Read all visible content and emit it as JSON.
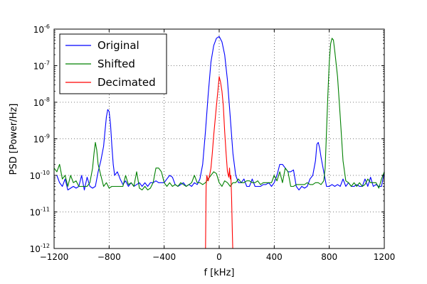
{
  "chart_data": {
    "type": "line",
    "xlabel": "f [kHz]",
    "ylabel": "PSD [Power/Hz]",
    "xlim": [
      -1200,
      1200
    ],
    "ylim_log10": [
      -12,
      -6
    ],
    "y_scale": "log",
    "grid": "dotted",
    "legend_position": "top-left",
    "x_ticks": [
      -1200,
      -800,
      -400,
      0,
      400,
      800,
      1200
    ],
    "x_tick_labels": [
      "−1200",
      "−800",
      "−400",
      "0",
      "400",
      "800",
      "1200"
    ],
    "y_tick_exponents": [
      -12,
      -11,
      -10,
      -9,
      -8,
      -7,
      -6
    ],
    "y_tick_labels": [
      {
        "base": "10",
        "exp": "-12"
      },
      {
        "base": "10",
        "exp": "-11"
      },
      {
        "base": "10",
        "exp": "-10"
      },
      {
        "base": "10",
        "exp": "-9"
      },
      {
        "base": "10",
        "exp": "-8"
      },
      {
        "base": "10",
        "exp": "-7"
      },
      {
        "base": "10",
        "exp": "-6"
      }
    ],
    "series": [
      {
        "name": "Original",
        "color": "#0000ff",
        "x": [
          -1200,
          -1180,
          -1160,
          -1140,
          -1120,
          -1100,
          -1080,
          -1060,
          -1040,
          -1020,
          -1000,
          -980,
          -960,
          -940,
          -920,
          -900,
          -880,
          -860,
          -840,
          -830,
          -820,
          -810,
          -800,
          -790,
          -780,
          -770,
          -760,
          -740,
          -720,
          -700,
          -680,
          -660,
          -640,
          -620,
          -600,
          -580,
          -560,
          -540,
          -520,
          -500,
          -480,
          -460,
          -440,
          -420,
          -400,
          -380,
          -360,
          -340,
          -320,
          -300,
          -280,
          -260,
          -240,
          -220,
          -200,
          -180,
          -160,
          -140,
          -120,
          -100,
          -80,
          -60,
          -40,
          -20,
          0,
          20,
          40,
          60,
          80,
          100,
          120,
          140,
          160,
          180,
          200,
          220,
          240,
          260,
          280,
          300,
          320,
          340,
          360,
          380,
          400,
          420,
          440,
          460,
          480,
          500,
          520,
          540,
          560,
          580,
          600,
          620,
          640,
          660,
          680,
          700,
          710,
          720,
          730,
          740,
          760,
          780,
          800,
          820,
          840,
          860,
          880,
          900,
          920,
          940,
          960,
          980,
          1000,
          1020,
          1040,
          1060,
          1080,
          1100,
          1120,
          1140,
          1160,
          1180,
          1200
        ],
        "log10_y": [
          -10.0,
          -10.0,
          -10.2,
          -10.3,
          -10.1,
          -10.4,
          -10.35,
          -10.3,
          -10.35,
          -10.3,
          -10.0,
          -10.4,
          -10.05,
          -10.3,
          -10.35,
          -10.3,
          -9.9,
          -9.6,
          -9.2,
          -8.8,
          -8.4,
          -8.2,
          -8.25,
          -8.6,
          -9.2,
          -9.7,
          -10.0,
          -9.9,
          -10.1,
          -10.25,
          -10.15,
          -10.3,
          -10.2,
          -10.3,
          -10.25,
          -10.2,
          -10.3,
          -10.2,
          -10.3,
          -10.2,
          -10.2,
          -10.15,
          -10.2,
          -10.2,
          -10.2,
          -10.1,
          -10.0,
          -10.05,
          -10.25,
          -10.3,
          -10.25,
          -10.2,
          -10.3,
          -10.25,
          -10.3,
          -10.2,
          -10.25,
          -10.1,
          -9.7,
          -8.8,
          -7.8,
          -6.9,
          -6.45,
          -6.25,
          -6.2,
          -6.35,
          -6.7,
          -7.4,
          -8.4,
          -9.4,
          -10.0,
          -10.2,
          -10.2,
          -10.1,
          -10.3,
          -10.3,
          -10.1,
          -10.3,
          -10.3,
          -10.3,
          -10.25,
          -10.25,
          -10.2,
          -10.3,
          -10.2,
          -10.0,
          -9.7,
          -9.7,
          -9.8,
          -9.9,
          -9.9,
          -9.85,
          -10.3,
          -10.4,
          -10.3,
          -10.35,
          -10.3,
          -10.1,
          -10.0,
          -9.6,
          -9.15,
          -9.1,
          -9.25,
          -9.5,
          -9.9,
          -10.3,
          -10.3,
          -10.25,
          -10.3,
          -10.25,
          -10.3,
          -10.1,
          -10.3,
          -10.2,
          -10.3,
          -10.3,
          -10.25,
          -10.3,
          -10.3,
          -10.1,
          -10.3,
          -10.05,
          -10.3,
          -10.25,
          -10.3,
          -10.3,
          -9.9
        ]
      },
      {
        "name": "Shifted",
        "color": "#008000",
        "x": [
          -1200,
          -1180,
          -1160,
          -1140,
          -1120,
          -1100,
          -1080,
          -1060,
          -1040,
          -1020,
          -1000,
          -980,
          -960,
          -940,
          -920,
          -910,
          -900,
          -890,
          -880,
          -860,
          -840,
          -820,
          -800,
          -780,
          -760,
          -740,
          -720,
          -700,
          -680,
          -660,
          -640,
          -620,
          -600,
          -580,
          -560,
          -540,
          -520,
          -500,
          -480,
          -460,
          -440,
          -420,
          -400,
          -380,
          -360,
          -340,
          -320,
          -300,
          -280,
          -260,
          -240,
          -220,
          -200,
          -180,
          -160,
          -140,
          -120,
          -100,
          -80,
          -60,
          -40,
          -20,
          0,
          20,
          40,
          60,
          80,
          100,
          120,
          140,
          160,
          180,
          200,
          220,
          240,
          260,
          280,
          300,
          320,
          340,
          360,
          380,
          400,
          420,
          440,
          460,
          480,
          500,
          520,
          540,
          560,
          580,
          600,
          620,
          640,
          660,
          680,
          700,
          720,
          740,
          760,
          770,
          780,
          790,
          800,
          810,
          820,
          830,
          840,
          860,
          880,
          900,
          920,
          940,
          960,
          980,
          1000,
          1020,
          1040,
          1060,
          1080,
          1100,
          1120,
          1140,
          1160,
          1180,
          1200
        ],
        "log10_y": [
          -9.8,
          -9.9,
          -9.7,
          -10.1,
          -10.0,
          -10.3,
          -10.0,
          -10.2,
          -10.15,
          -10.3,
          -10.3,
          -10.3,
          -10.3,
          -10.2,
          -9.8,
          -9.4,
          -9.1,
          -9.3,
          -9.7,
          -10.0,
          -10.3,
          -10.2,
          -10.35,
          -10.3,
          -10.3,
          -10.3,
          -10.3,
          -10.3,
          -10.0,
          -10.25,
          -10.2,
          -10.3,
          -9.9,
          -10.35,
          -10.4,
          -10.3,
          -10.4,
          -10.35,
          -10.2,
          -9.8,
          -9.8,
          -9.9,
          -10.2,
          -10.3,
          -10.2,
          -10.3,
          -10.25,
          -10.3,
          -10.2,
          -10.25,
          -10.3,
          -10.25,
          -10.2,
          -10.0,
          -10.2,
          -10.2,
          -10.25,
          -10.2,
          -10.1,
          -10.0,
          -9.9,
          -9.95,
          -10.2,
          -10.3,
          -10.15,
          -10.2,
          -10.3,
          -10.2,
          -10.2,
          -10.1,
          -10.2,
          -10.2,
          -10.15,
          -10.15,
          -10.2,
          -10.2,
          -10.15,
          -10.25,
          -10.2,
          -10.2,
          -10.2,
          -10.2,
          -10.0,
          -10.15,
          -9.9,
          -10.2,
          -9.8,
          -9.9,
          -10.3,
          -10.3,
          -10.25,
          -10.25,
          -10.25,
          -10.25,
          -10.2,
          -10.25,
          -10.25,
          -10.2,
          -10.2,
          -10.25,
          -10.15,
          -9.8,
          -8.8,
          -7.8,
          -6.9,
          -6.4,
          -6.25,
          -6.3,
          -6.6,
          -7.3,
          -8.4,
          -9.6,
          -10.15,
          -10.2,
          -10.3,
          -10.2,
          -10.3,
          -10.2,
          -10.3,
          -10.25,
          -10.1,
          -10.2,
          -10.2,
          -10.2,
          -10.35,
          -10.1,
          -9.9,
          -9.7
        ]
      },
      {
        "name": "Decimated",
        "color": "#ff0000",
        "x": [
          -100,
          -95,
          -90,
          -80,
          -70,
          -60,
          -50,
          -40,
          -30,
          -20,
          -10,
          0,
          10,
          20,
          30,
          40,
          50,
          60,
          70,
          75,
          80,
          85,
          90,
          95,
          100
        ],
        "log10_y": [
          -12.2,
          -10.3,
          -10.0,
          -10.15,
          -10.0,
          -9.8,
          -9.4,
          -8.9,
          -8.5,
          -8.1,
          -7.7,
          -7.3,
          -7.45,
          -7.7,
          -8.1,
          -8.8,
          -9.4,
          -9.9,
          -10.05,
          -9.8,
          -10.1,
          -10.0,
          -10.6,
          -11.5,
          -12.2
        ]
      }
    ]
  }
}
